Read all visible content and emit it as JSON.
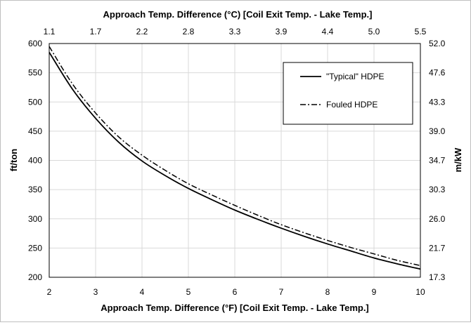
{
  "chart_data": {
    "type": "line",
    "title": "",
    "xlabel": "Approach Temp. Difference (°F) [Coil Exit Temp. - Lake Temp.]",
    "x2label": "Approach Temp. Difference (°C) [Coil Exit Temp. - Lake Temp.]",
    "ylabel": "ft/ton",
    "y2label": "m/kW",
    "xlim": [
      2,
      10
    ],
    "ylim": [
      200,
      600
    ],
    "xticks": [
      "2",
      "3",
      "4",
      "5",
      "6",
      "7",
      "8",
      "9",
      "10"
    ],
    "x2ticks": [
      "1.1",
      "1.7",
      "2.2",
      "2.8",
      "3.3",
      "3.9",
      "4.4",
      "5.0",
      "5.5"
    ],
    "yticks": [
      "200",
      "250",
      "300",
      "350",
      "400",
      "450",
      "500",
      "550",
      "600"
    ],
    "y2ticks": [
      "17.3",
      "21.7",
      "26.0",
      "30.3",
      "34.7",
      "39.0",
      "43.3",
      "47.6",
      "52.0"
    ],
    "grid": true,
    "legend_position": "top-right",
    "series": [
      {
        "name": "\"Typical\" HDPE",
        "style": "solid",
        "color": "#000000",
        "x": [
          2,
          2.5,
          3,
          3.5,
          4,
          4.5,
          5,
          5.5,
          6,
          6.5,
          7,
          7.5,
          8,
          8.5,
          9,
          9.5,
          10
        ],
        "y": [
          585,
          522,
          472,
          431,
          399,
          374,
          352,
          333,
          315,
          299,
          284,
          270,
          257,
          245,
          233,
          223,
          214
        ]
      },
      {
        "name": "Fouled HDPE",
        "style": "dash-dot",
        "color": "#000000",
        "x": [
          2,
          2.5,
          3,
          3.5,
          4,
          4.5,
          5,
          5.5,
          6,
          6.5,
          7,
          7.5,
          8,
          8.5,
          9,
          9.5,
          10
        ],
        "y": [
          595,
          531,
          481,
          440,
          409,
          383,
          360,
          341,
          323,
          306,
          290,
          276,
          263,
          251,
          240,
          229,
          220
        ]
      }
    ]
  }
}
